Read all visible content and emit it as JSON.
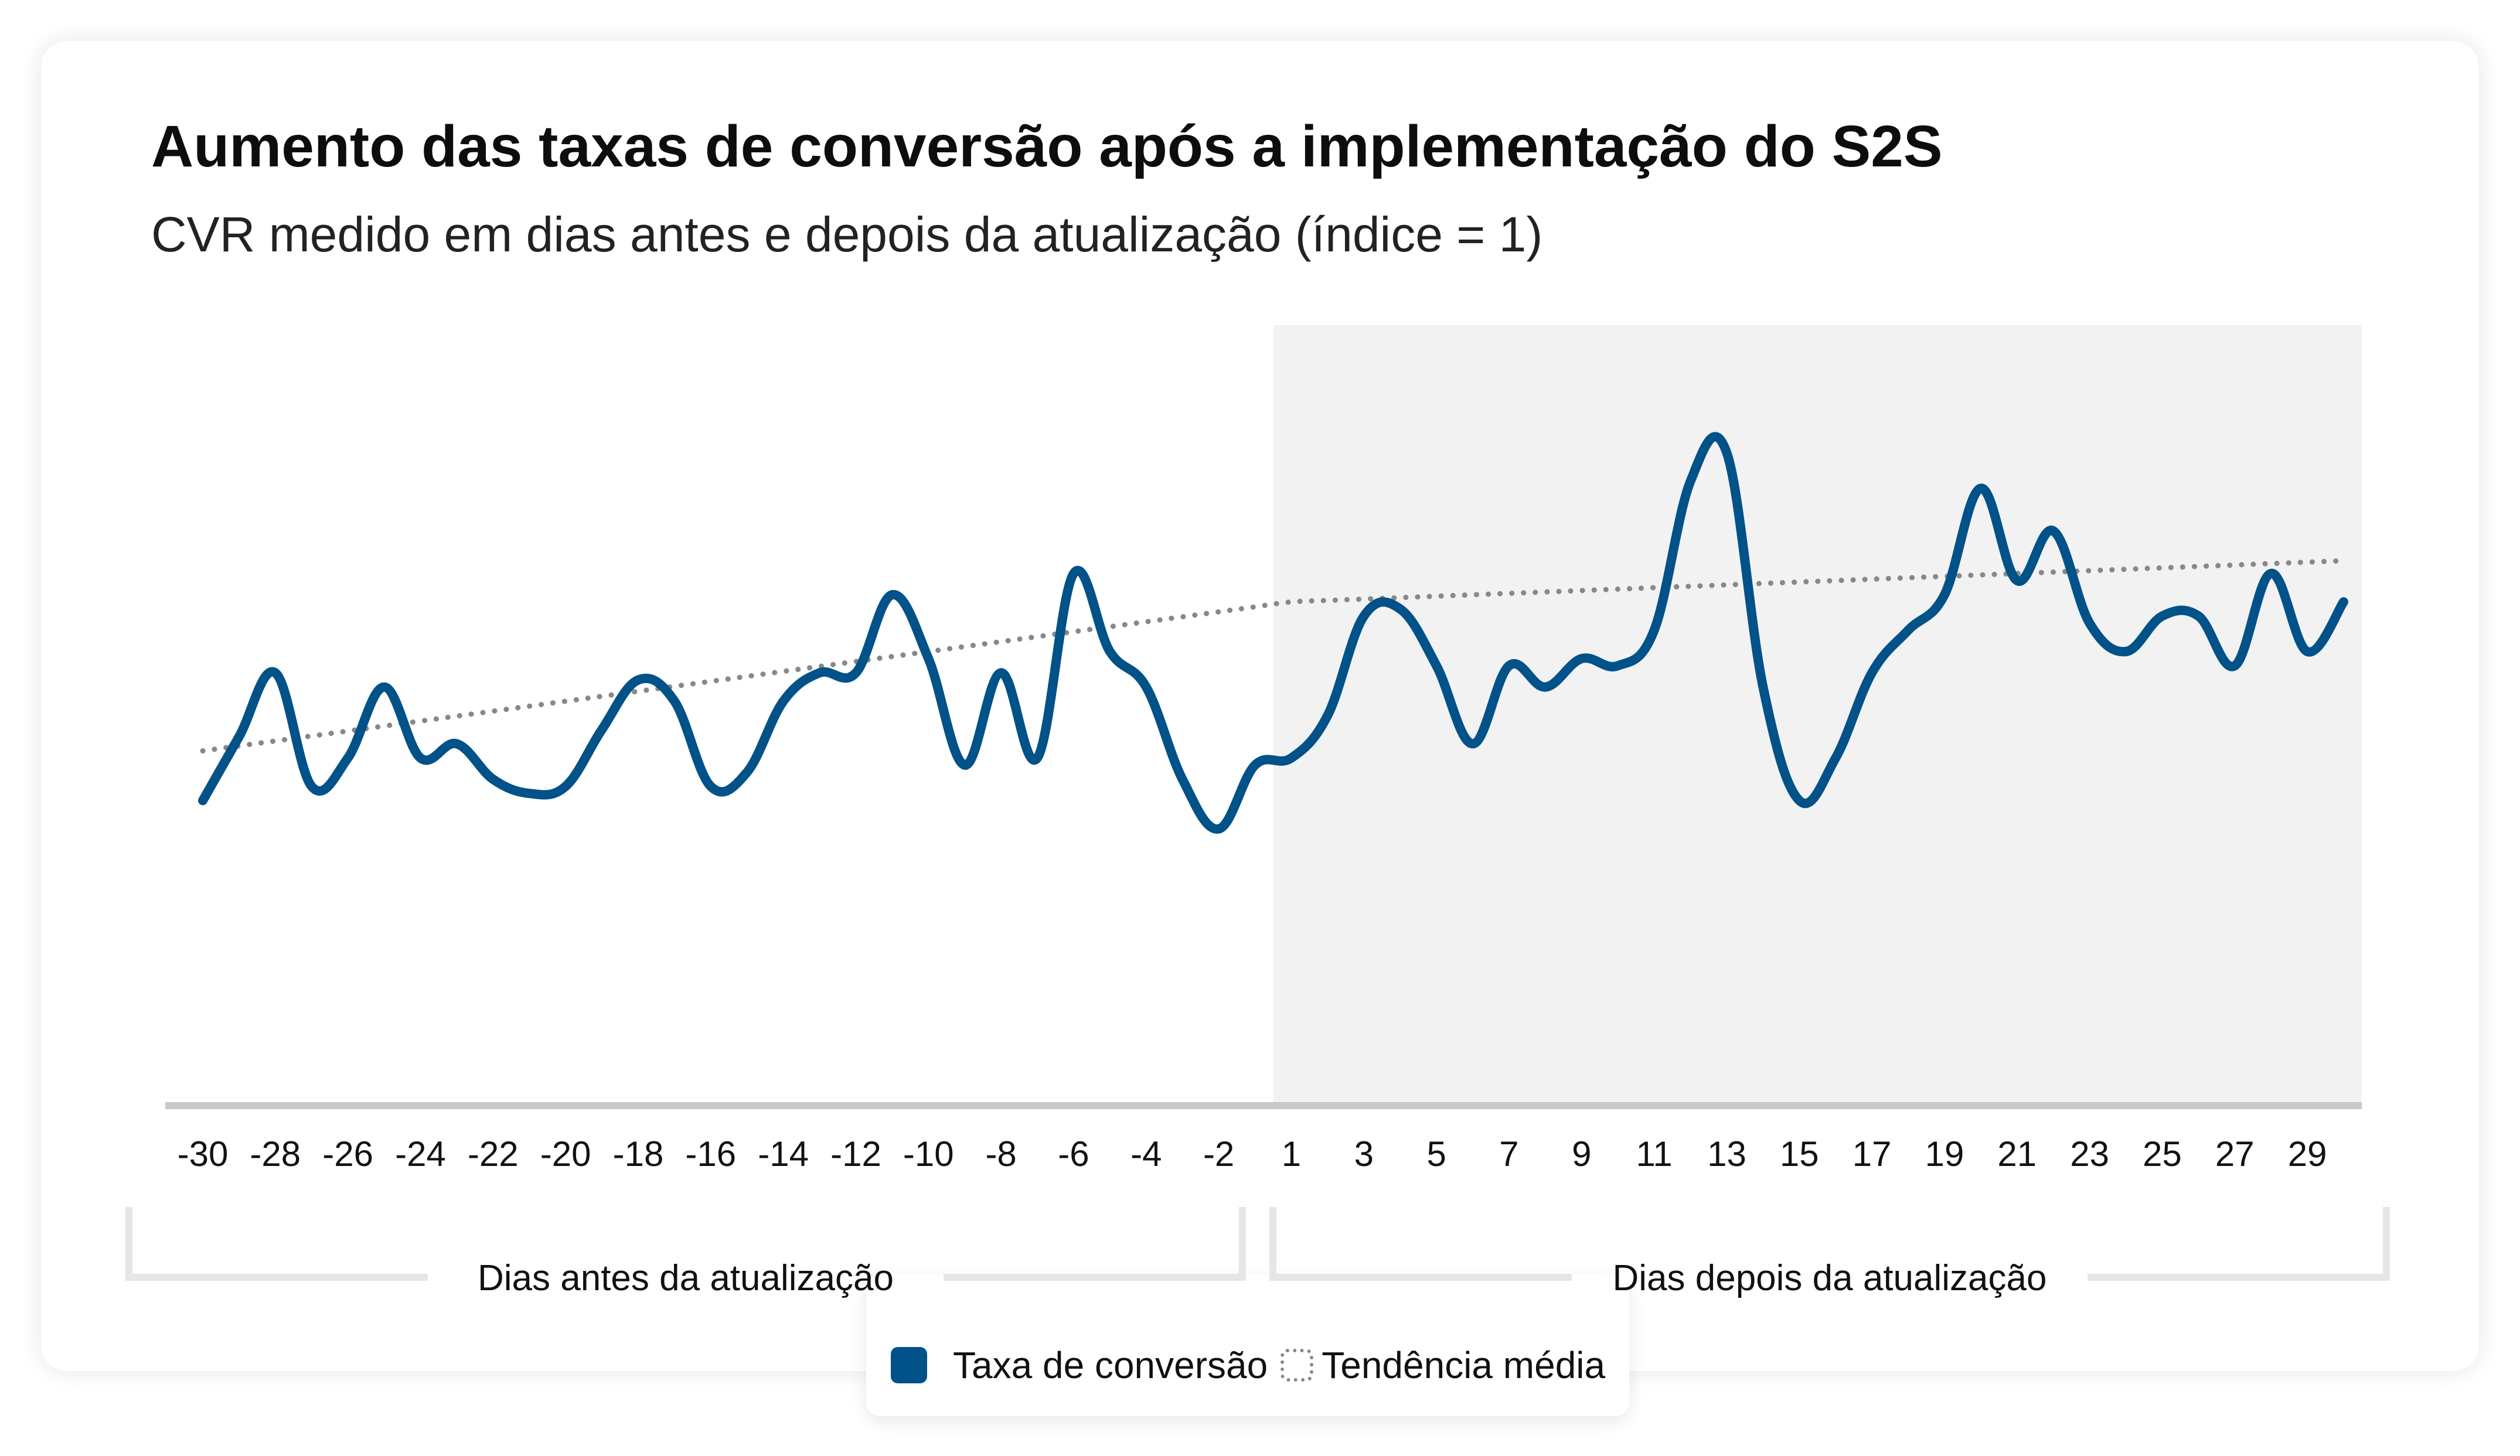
{
  "chart_data": {
    "type": "line",
    "title": "Aumento das taxas de conversão após a implementação do S2S",
    "subtitle": "CVR medido em dias antes e depois da atualização (índice = 1)",
    "x": [
      -30,
      -29,
      -28,
      -27,
      -26,
      -25,
      -24,
      -23,
      -22,
      -21,
      -20,
      -19,
      -18,
      -17,
      -16,
      -15,
      -14,
      -13,
      -12,
      -11,
      -10,
      -9,
      -8,
      -7,
      -6,
      -5,
      -4,
      -3,
      -2,
      -1,
      1,
      2,
      3,
      4,
      5,
      6,
      7,
      8,
      9,
      10,
      11,
      12,
      13,
      14,
      15,
      16,
      17,
      18,
      19,
      20,
      21,
      22,
      23,
      24,
      25,
      26,
      27,
      28,
      29,
      30
    ],
    "x_ticks": [
      -30,
      -28,
      -26,
      -24,
      -22,
      -20,
      -18,
      -16,
      -14,
      -12,
      -10,
      -8,
      -6,
      -4,
      -2,
      1,
      3,
      5,
      7,
      9,
      11,
      13,
      15,
      17,
      19,
      21,
      23,
      25,
      27,
      29
    ],
    "ylim": [
      0.25,
      1.35
    ],
    "grid": false,
    "legend_position": "bottom-center",
    "series": [
      {
        "name": "Taxa de conversão",
        "color": "#005288",
        "values": [
          0.68,
          0.77,
          0.86,
          0.7,
          0.74,
          0.84,
          0.74,
          0.76,
          0.71,
          0.69,
          0.7,
          0.78,
          0.85,
          0.82,
          0.7,
          0.72,
          0.82,
          0.86,
          0.86,
          0.97,
          0.88,
          0.73,
          0.86,
          0.74,
          1.0,
          0.89,
          0.84,
          0.71,
          0.64,
          0.73,
          0.74,
          0.8,
          0.94,
          0.95,
          0.87,
          0.76,
          0.87,
          0.84,
          0.88,
          0.87,
          0.92,
          1.13,
          1.17,
          0.84,
          0.68,
          0.74,
          0.86,
          0.92,
          0.97,
          1.12,
          0.99,
          1.06,
          0.93,
          0.89,
          0.94,
          0.94,
          0.87,
          1.0,
          0.89,
          0.96
        ]
      },
      {
        "name": "Tendência média",
        "style": "dotted",
        "color": "#888888",
        "values": [
          0.75,
          0.757,
          0.764,
          0.771,
          0.778,
          0.785,
          0.792,
          0.799,
          0.806,
          0.813,
          0.82,
          0.827,
          0.834,
          0.841,
          0.848,
          0.855,
          0.862,
          0.869,
          0.876,
          0.883,
          0.89,
          0.897,
          0.904,
          0.911,
          0.918,
          0.925,
          0.932,
          0.939,
          0.946,
          0.953,
          0.96,
          0.962,
          0.964,
          0.966,
          0.968,
          0.97,
          0.972,
          0.974,
          0.976,
          0.978,
          0.98,
          0.982,
          0.984,
          0.986,
          0.988,
          0.99,
          0.992,
          0.994,
          0.996,
          0.998,
          1.0,
          1.002,
          1.004,
          1.006,
          1.008,
          1.01,
          1.012,
          1.014,
          1.016,
          1.018
        ]
      }
    ],
    "regions": [
      {
        "label": "Dias antes da atualização",
        "from": -30,
        "to": -1,
        "shaded": false
      },
      {
        "label": "Dias depois da atualização",
        "from": 1,
        "to": 30,
        "shaded": true
      }
    ],
    "colors": {
      "after_region_background": "#f2f2f2",
      "axis": "#c8c8c8",
      "bracket": "#e6e6e6"
    }
  },
  "legend": {
    "items": [
      {
        "label": "Taxa de conversão",
        "swatch": "solid-square",
        "color": "#005288"
      },
      {
        "label": "Tendência média",
        "swatch": "dotted-square",
        "color": "#888888"
      }
    ]
  }
}
